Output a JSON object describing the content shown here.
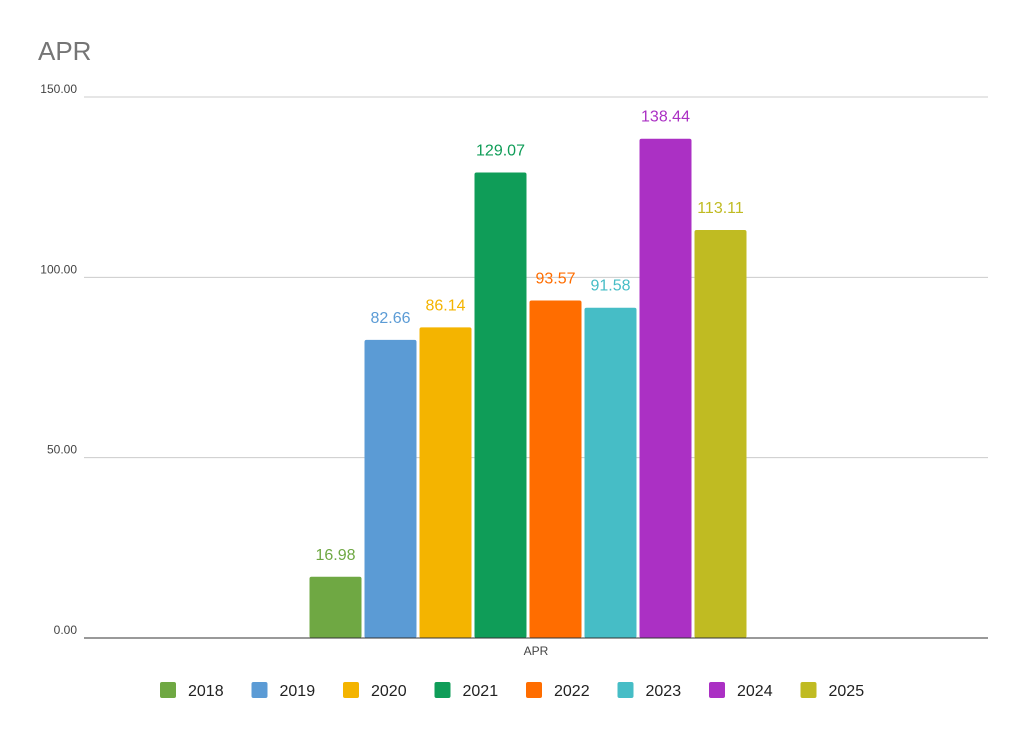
{
  "chart_data": {
    "type": "bar",
    "title": "APR",
    "xlabel": "",
    "ylabel": "",
    "categories": [
      "APR"
    ],
    "series": [
      {
        "name": "2018",
        "values": [
          16.98
        ],
        "label": "16.98",
        "color": "#6fa843"
      },
      {
        "name": "2019",
        "values": [
          82.66
        ],
        "label": "82.66",
        "color": "#5b9bd5"
      },
      {
        "name": "2020",
        "values": [
          86.14
        ],
        "label": "86.14",
        "color": "#f4b400"
      },
      {
        "name": "2021",
        "values": [
          129.07
        ],
        "label": "129.07",
        "color": "#0f9d58"
      },
      {
        "name": "2022",
        "values": [
          93.57
        ],
        "label": "93.57",
        "color": "#ff6d00"
      },
      {
        "name": "2023",
        "values": [
          91.58
        ],
        "label": "91.58",
        "color": "#46bdc6"
      },
      {
        "name": "2024",
        "values": [
          138.44
        ],
        "label": "138.44",
        "color": "#ab30c4"
      },
      {
        "name": "2025",
        "values": [
          113.11
        ],
        "label": "113.11",
        "color": "#c0bb22"
      }
    ],
    "ylim": [
      0,
      150
    ],
    "yticks": [
      {
        "value": 0,
        "label": "0.00"
      },
      {
        "value": 50,
        "label": "50.00"
      },
      {
        "value": 100,
        "label": "100.00"
      },
      {
        "value": 150,
        "label": "150.00"
      }
    ],
    "grid": true,
    "legend_position": "bottom"
  }
}
